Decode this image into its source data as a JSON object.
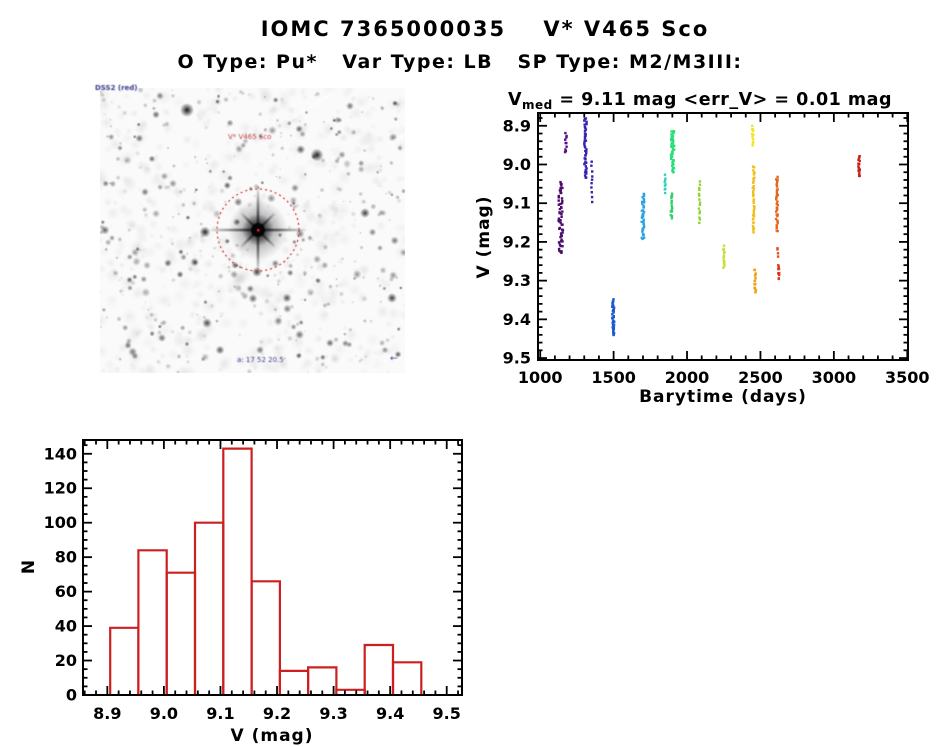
{
  "page": {
    "title": "IOMC 7365000035    V* V465 Sco",
    "subtitle": "O Type: Pu*   Var Type: LB   SP Type: M2/M3III:"
  },
  "finder": {
    "survey_label": "DSS2 (red)",
    "target_label": "V* V465 Sco",
    "coords_label": "a: 17 52 20.5",
    "compass_label": "←",
    "circle_color": "#cc3333",
    "center_marker_color": "#dd2222"
  },
  "colors": {
    "axis": "#000000",
    "histogram_line": "#cc2020",
    "background": "#ffffff"
  },
  "chart_data": [
    {
      "type": "scatter",
      "title": "V_med = 9.11 mag <err_V> = 0.01 mag",
      "title_parts": {
        "main": "V",
        "sub": "med",
        "rest": " = 9.11 mag <err_V> = 0.01 mag"
      },
      "v_med_value": "9.11",
      "err_v_value": "0.01",
      "xlabel": "Barytime (days)",
      "ylabel": "V (mag)",
      "xlim": [
        985,
        3505
      ],
      "ylim_top": 8.867,
      "ylim_bottom": 9.505,
      "xticks": [
        1000,
        1500,
        2000,
        2500,
        3000,
        3500
      ],
      "xtick_labels": [
        "1000",
        "1500",
        "2000",
        "2500",
        "3000",
        "3500"
      ],
      "x_minor_step": 100,
      "yticks": [
        8.9,
        9.0,
        9.1,
        9.2,
        9.3,
        9.4,
        9.5
      ],
      "ytick_labels": [
        "8.9",
        "9.0",
        "9.1",
        "9.2",
        "9.3",
        "9.4",
        "9.5"
      ],
      "y_minor_step": 0.02,
      "legend": "none",
      "grid": false,
      "clusters": [
        {
          "t": 1140,
          "w": 30,
          "v0": 9.045,
          "v1": 9.23,
          "color": "#4d0d6e",
          "n": 55
        },
        {
          "t": 1175,
          "w": 12,
          "v0": 8.92,
          "v1": 8.97,
          "color": "#5a0f8a",
          "n": 10
        },
        {
          "t": 1308,
          "w": 16,
          "v0": 8.88,
          "v1": 9.035,
          "color": "#3a22b0",
          "n": 42
        },
        {
          "t": 1352,
          "w": 8,
          "v0": 8.995,
          "v1": 9.095,
          "color": "#3328a2",
          "n": 10
        },
        {
          "t": 1497,
          "w": 14,
          "v0": 9.35,
          "v1": 9.44,
          "color": "#1b5bd0",
          "n": 38
        },
        {
          "t": 1700,
          "w": 18,
          "v0": 9.075,
          "v1": 9.195,
          "color": "#2da4de",
          "n": 36
        },
        {
          "t": 1852,
          "w": 8,
          "v0": 9.028,
          "v1": 9.072,
          "color": "#35cfc0",
          "n": 9
        },
        {
          "t": 1902,
          "w": 22,
          "v0": 8.912,
          "v1": 9.022,
          "color": "#2ade7c",
          "n": 48
        },
        {
          "t": 1894,
          "w": 10,
          "v0": 9.075,
          "v1": 9.138,
          "color": "#2cd169",
          "n": 14
        },
        {
          "t": 2085,
          "w": 8,
          "v0": 9.045,
          "v1": 9.15,
          "color": "#90d433",
          "n": 15
        },
        {
          "t": 2252,
          "w": 8,
          "v0": 9.21,
          "v1": 9.265,
          "color": "#c2e12d",
          "n": 12
        },
        {
          "t": 2448,
          "w": 10,
          "v0": 8.903,
          "v1": 8.95,
          "color": "#f2e428",
          "n": 12
        },
        {
          "t": 2454,
          "w": 12,
          "v0": 9.005,
          "v1": 9.175,
          "color": "#f1c01e",
          "n": 40
        },
        {
          "t": 2464,
          "w": 10,
          "v0": 9.27,
          "v1": 9.33,
          "color": "#f19d17",
          "n": 14
        },
        {
          "t": 2612,
          "w": 12,
          "v0": 9.032,
          "v1": 9.175,
          "color": "#e4671d",
          "n": 34
        },
        {
          "t": 2618,
          "w": 6,
          "v0": 9.215,
          "v1": 9.235,
          "color": "#e0511b",
          "n": 4
        },
        {
          "t": 2624,
          "w": 8,
          "v0": 9.258,
          "v1": 9.298,
          "color": "#da3b19",
          "n": 9
        },
        {
          "t": 3172,
          "w": 10,
          "v0": 8.978,
          "v1": 9.032,
          "color": "#c92217",
          "n": 16
        }
      ]
    },
    {
      "type": "histogram",
      "xlabel": "V (mag)",
      "ylabel": "N",
      "xlim": [
        8.857,
        9.527
      ],
      "ylim": [
        0,
        148
      ],
      "bin_start": 8.905,
      "bin_width": 0.05,
      "values": [
        39,
        84,
        71,
        100,
        143,
        66,
        14,
        16,
        3,
        29,
        19
      ],
      "xticks": [
        8.9,
        9.0,
        9.1,
        9.2,
        9.3,
        9.4,
        9.5
      ],
      "xtick_labels": [
        "8.9",
        "9.0",
        "9.1",
        "9.2",
        "9.3",
        "9.4",
        "9.5"
      ],
      "x_minor_step": 0.02,
      "yticks": [
        0,
        20,
        40,
        60,
        80,
        100,
        120,
        140
      ],
      "ytick_labels": [
        "0",
        "20",
        "40",
        "60",
        "80",
        "100",
        "120",
        "140"
      ],
      "y_minor_step": 5,
      "color": "#cc2020",
      "grid": false
    }
  ]
}
